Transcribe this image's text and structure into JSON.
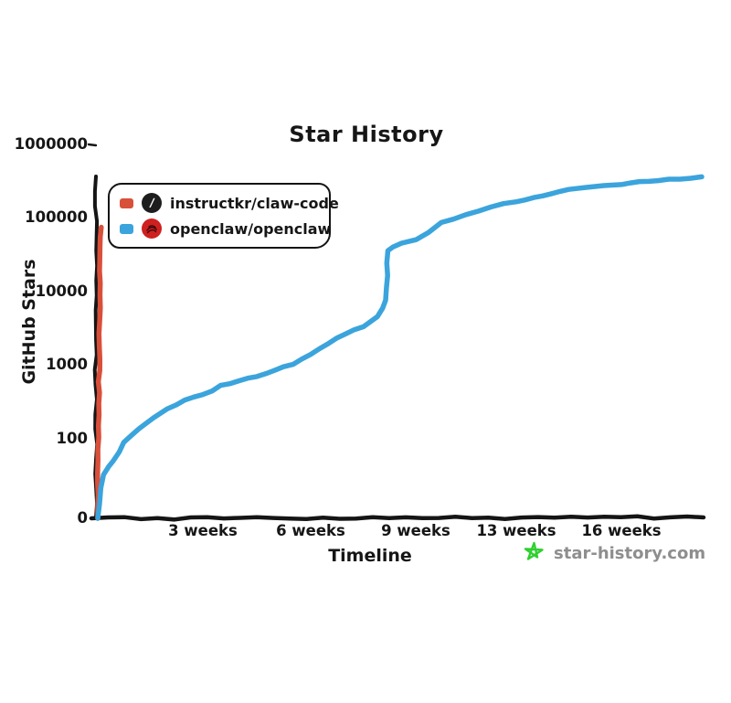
{
  "title": "Star History",
  "colors": {
    "axis": "#151515",
    "claw_code_line": "#d9503a",
    "openclaw_line": "#3ba4dc",
    "text": "#161616"
  },
  "legend": {
    "items": [
      {
        "label": "instructkr/claw-code",
        "color": "#d9503a",
        "avatar_bg": "#1d1d1d",
        "avatar_glyph": "/"
      },
      {
        "label": "openclaw/openclaw",
        "color": "#3ba4dc",
        "avatar_bg": "#cf1f1f",
        "avatar_glyph": ""
      }
    ]
  },
  "brand": {
    "text": "star-history.com",
    "text_color": "#8e8e8e",
    "star_color": "#2ed02e"
  },
  "chart_data": {
    "type": "line",
    "title": "Star History",
    "xlabel": "Timeline",
    "ylabel": "GitHub Stars",
    "x_unit": "weeks",
    "xlim_weeks": [
      0,
      18.2
    ],
    "ylim": [
      0,
      1000000
    ],
    "y_scale": "log above 100, linear 0-100",
    "y_ticks": [
      0,
      100,
      1000,
      10000,
      100000,
      1000000
    ],
    "x_ticks": [
      {
        "label": "3 weeks",
        "weeks": 3
      },
      {
        "label": "6 weeks",
        "weeks": 6
      },
      {
        "label": "9 weeks",
        "weeks": 9
      },
      {
        "label": "13 weeks",
        "weeks": 13
      },
      {
        "label": "16 weeks",
        "weeks": 16
      }
    ],
    "grid": false,
    "legend_position": "top-left",
    "series": [
      {
        "name": "instructkr/claw-code",
        "color": "#d9503a",
        "points_week_stars": [
          [
            0.05,
            0
          ],
          [
            0.07,
            150
          ],
          [
            0.09,
            1200
          ],
          [
            0.11,
            9000
          ],
          [
            0.13,
            40000
          ],
          [
            0.15,
            75000
          ]
        ]
      },
      {
        "name": "openclaw/openclaw",
        "color": "#3ba4dc",
        "points_week_stars": [
          [
            0.05,
            0
          ],
          [
            0.08,
            18
          ],
          [
            0.12,
            38
          ],
          [
            0.2,
            55
          ],
          [
            0.35,
            65
          ],
          [
            0.5,
            72
          ],
          [
            0.8,
            95
          ],
          [
            1.2,
            140
          ],
          [
            1.6,
            195
          ],
          [
            2,
            260
          ],
          [
            2.5,
            330
          ],
          [
            3,
            400
          ],
          [
            3.5,
            520
          ],
          [
            4,
            620
          ],
          [
            4.5,
            710
          ],
          [
            5,
            830
          ],
          [
            5.5,
            1050
          ],
          [
            6,
            1400
          ],
          [
            6.5,
            2000
          ],
          [
            7,
            2600
          ],
          [
            7.5,
            3400
          ],
          [
            7.9,
            4600
          ],
          [
            8.05,
            6000
          ],
          [
            8.15,
            7600
          ],
          [
            8.2,
            36000
          ],
          [
            8.35,
            40000
          ],
          [
            8.6,
            45000
          ],
          [
            9,
            52000
          ],
          [
            9.5,
            65000
          ],
          [
            10,
            88000
          ],
          [
            10.5,
            97000
          ],
          [
            11,
            110000
          ],
          [
            11.5,
            125000
          ],
          [
            12,
            140000
          ],
          [
            12.5,
            155000
          ],
          [
            13,
            170000
          ],
          [
            13.5,
            190000
          ],
          [
            14,
            215000
          ],
          [
            14.5,
            240000
          ],
          [
            15,
            258000
          ],
          [
            15.5,
            275000
          ],
          [
            16,
            292000
          ],
          [
            16.5,
            308000
          ],
          [
            17,
            328000
          ],
          [
            17.6,
            346000
          ],
          [
            18.2,
            363000
          ]
        ]
      }
    ]
  }
}
